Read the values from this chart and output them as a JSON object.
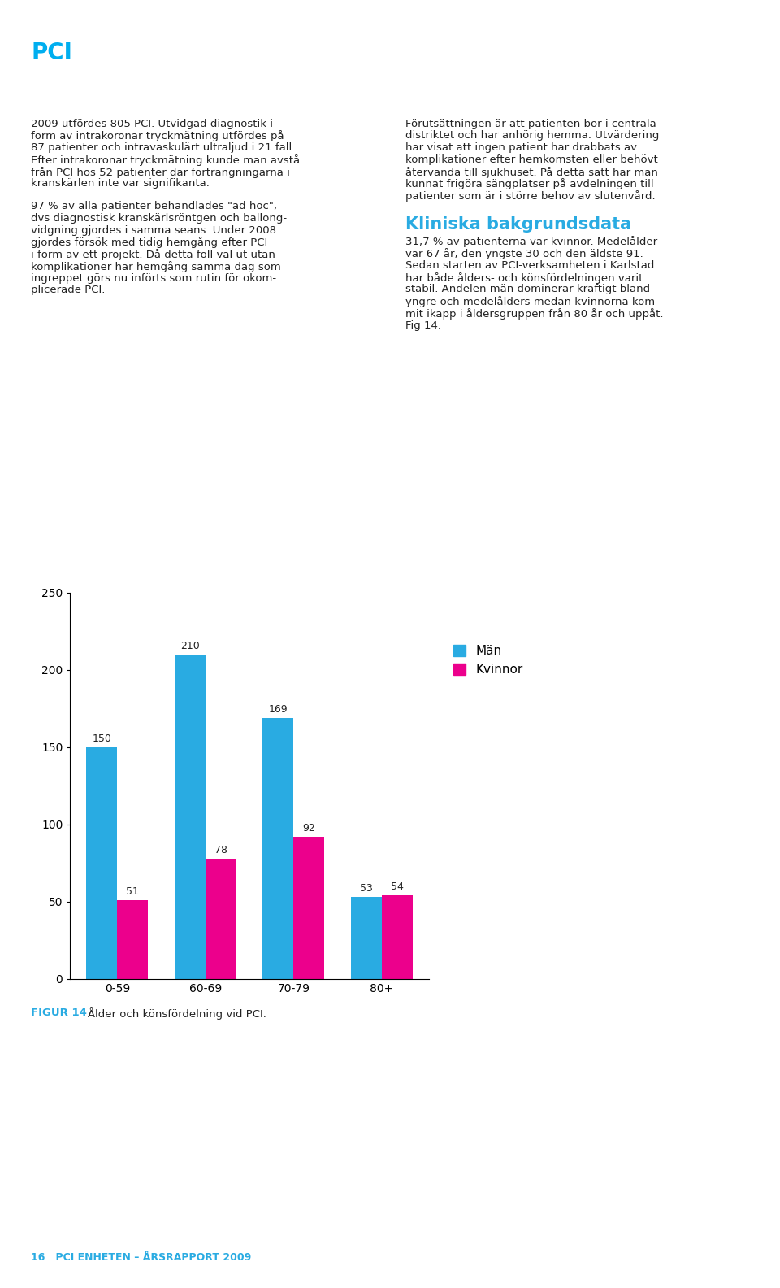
{
  "title": "PCI",
  "title_color": "#00AEEF",
  "left_col_p1_lines": [
    "2009 utfördes 805 PCI. Utvidgad diagnostik i",
    "form av intrakoronar tryckmätning utfördes på",
    "87 patienter och intravaskulärt ultraljud i 21 fall.",
    "Efter intrakoronar tryckmätning kunde man avstå",
    "från PCI hos 52 patienter där förträngningarna i",
    "kranskärlen inte var signifikanta."
  ],
  "left_col_p2_lines": [
    "97 % av alla patienter behandlades \"ad hoc\",",
    "dvs diagnostisk kranskärlsröntgen och ballong-",
    "vidgning gjordes i samma seans. Under 2008",
    "gjordes försök med tidig hemgång efter PCI",
    "i form av ett projekt. Då detta föll väl ut utan",
    "komplikationer har hemgång samma dag som",
    "ingreppet görs nu införts som rutin för okom-",
    "plicerade PCI."
  ],
  "right_col_p1_lines": [
    "Förutsättningen är att patienten bor i centrala",
    "distriktet och har anhörig hemma. Utvärdering",
    "har visat att ingen patient har drabbats av",
    "komplikationer efter hemkomsten eller behövt",
    "återvända till sjukhuset. På detta sätt har man",
    "kunnat frigöra sängplatser på avdelningen till",
    "patienter som är i större behov av slutenvård."
  ],
  "right_col_heading": "Kliniska bakgrundsdata",
  "right_col_p2_lines": [
    "31,7 % av patienterna var kvinnor. Medelålder",
    "var 67 år, den yngste 30 och den äldste 91.",
    "Sedan starten av PCI-verksamheten i Karlstad",
    "har både ålders- och könsfördelningen varit",
    "stabil. Andelen män dominerar kraftigt bland",
    "yngre och medelålders medan kvinnorna kom-",
    "mit ikapp i åldersgruppen från 80 år och uppåt.",
    "Fig 14."
  ],
  "categories": [
    "0-59",
    "60-69",
    "70-79",
    "80+"
  ],
  "man_values": [
    150,
    210,
    169,
    53
  ],
  "kvinnor_values": [
    51,
    78,
    92,
    54
  ],
  "man_color": "#29ABE2",
  "kvinnor_color": "#EC008C",
  "bar_width": 0.35,
  "ylim": [
    0,
    250
  ],
  "yticks": [
    0,
    50,
    100,
    150,
    200,
    250
  ],
  "legend_man": "Män",
  "legend_kvinnor": "Kvinnor",
  "figur_label": "FIGUR 14",
  "figur_text": "Ålder och könsfördelning vid PCI.",
  "text_color": "#222222",
  "heading_color": "#29ABE2",
  "body_fontsize": 9.5,
  "title_fontsize": 20,
  "heading_fontsize": 15,
  "figur_label_fontsize": 9,
  "axis_fontsize": 10,
  "bar_label_fontsize": 9,
  "footer_line": "16   PCI ENHETEN – ÅRSRAPPORT 2009",
  "footer_color": "#29ABE2"
}
